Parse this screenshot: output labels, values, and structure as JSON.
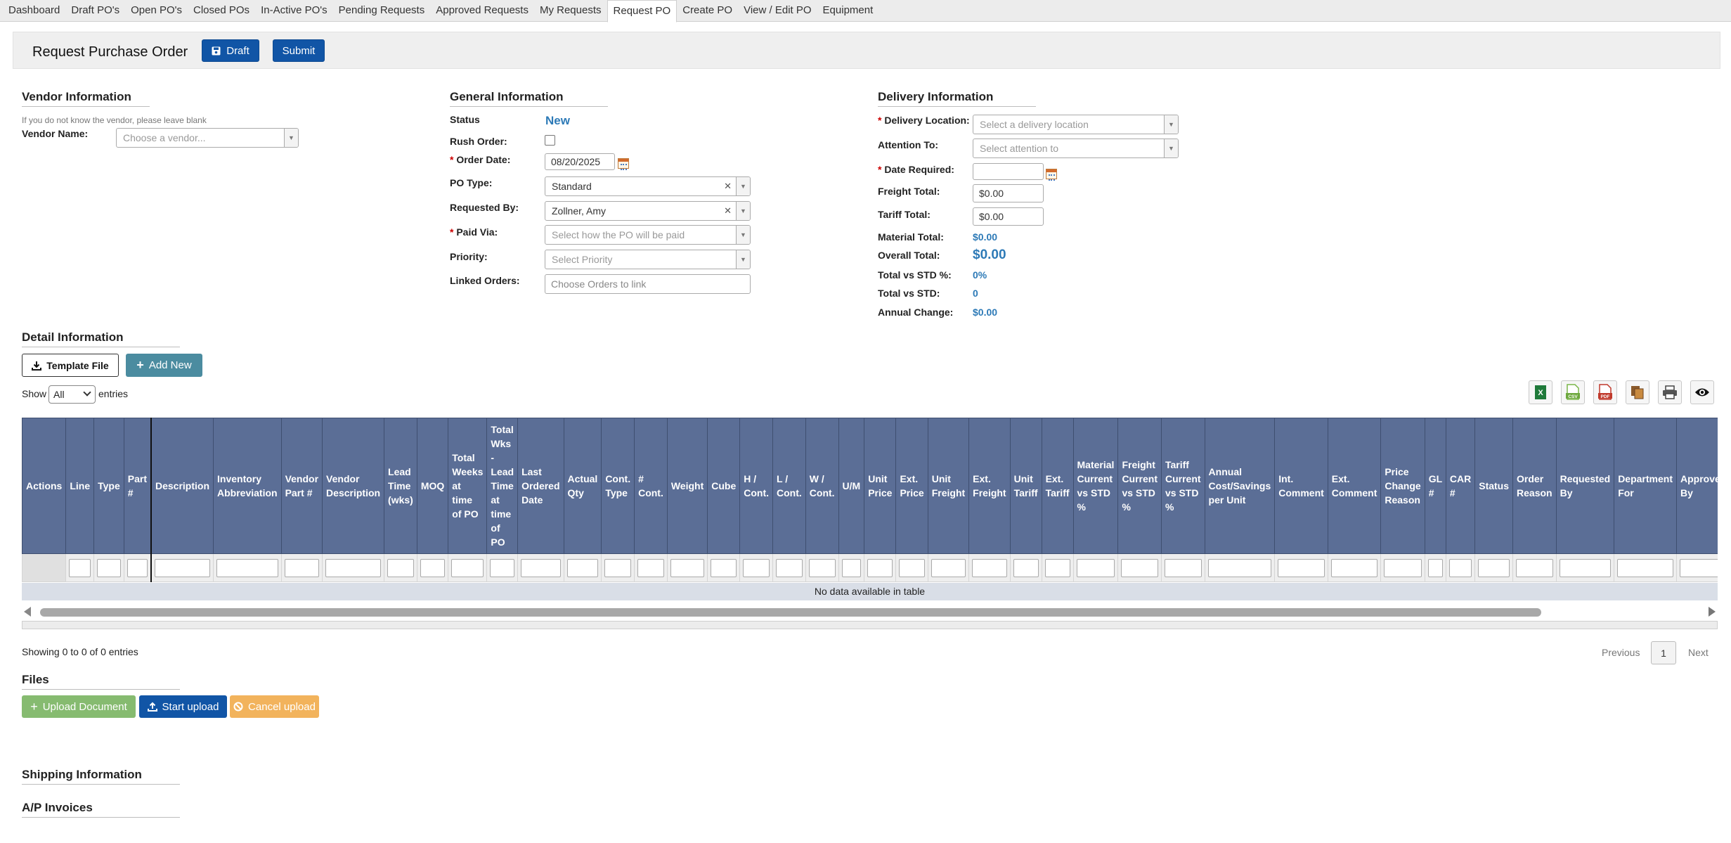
{
  "nav": {
    "tabs": [
      {
        "label": "Dashboard"
      },
      {
        "label": "Draft PO's"
      },
      {
        "label": "Open PO's"
      },
      {
        "label": "Closed POs"
      },
      {
        "label": "In-Active PO's"
      },
      {
        "label": "Pending Requests"
      },
      {
        "label": "Approved Requests"
      },
      {
        "label": "My Requests"
      },
      {
        "label": "Request PO",
        "active": true
      },
      {
        "label": "Create PO"
      },
      {
        "label": "View / Edit PO"
      },
      {
        "label": "Equipment"
      }
    ]
  },
  "header": {
    "title": "Request Purchase Order",
    "draft_label": "Draft",
    "submit_label": "Submit"
  },
  "vendor": {
    "title": "Vendor Information",
    "note": "If you do not know the vendor, please leave blank",
    "name_label": "Vendor Name:",
    "name_placeholder": "Choose a vendor..."
  },
  "general": {
    "title": "General Information",
    "status_label": "Status",
    "status_value": "New",
    "rush_label": "Rush Order:",
    "order_date_label": "Order Date:",
    "order_date_value": "08/20/2025",
    "po_type_label": "PO Type:",
    "po_type_value": "Standard",
    "requested_by_label": "Requested By:",
    "requested_by_value": "Zollner, Amy",
    "paid_via_label": "Paid Via:",
    "paid_via_placeholder": "Select how the PO will be paid",
    "priority_label": "Priority:",
    "priority_placeholder": "Select Priority",
    "linked_label": "Linked Orders:",
    "linked_placeholder": "Choose Orders to link"
  },
  "delivery": {
    "title": "Delivery Information",
    "location_label": "Delivery Location:",
    "location_placeholder": "Select a delivery location",
    "attention_label": "Attention To:",
    "attention_placeholder": "Select attention to",
    "date_required_label": "Date Required:",
    "freight_label": "Freight Total:",
    "freight_value": "$0.00",
    "tariff_label": "Tariff Total:",
    "tariff_value": "$0.00",
    "material_label": "Material Total:",
    "material_value": "$0.00",
    "overall_label": "Overall Total:",
    "overall_value": "$0.00",
    "vs_std_pct_label": "Total vs STD %:",
    "vs_std_pct_value": "0%",
    "vs_std_label": "Total vs STD:",
    "vs_std_value": "0",
    "annual_label": "Annual Change:",
    "annual_value": "$0.00"
  },
  "detail": {
    "title": "Detail Information",
    "template_label": "Template File",
    "add_new_label": "Add New",
    "show_label": "Show",
    "show_value": "All",
    "entries_label": "entries",
    "no_data": "No data available in table",
    "showing": "Showing 0 to 0 of 0 entries",
    "prev": "Previous",
    "page": "1",
    "next": "Next",
    "export_icons": [
      "excel-icon",
      "csv-icon",
      "pdf-icon",
      "copy-icon",
      "print-icon",
      "column-visibility-icon"
    ],
    "columns": [
      "Actions",
      "Line",
      "Type",
      "Part #",
      "Description",
      "Inventory Abbreviation",
      "Vendor Part #",
      "Vendor Description",
      "Lead Time (wks)",
      "MOQ",
      "Total Weeks at time of PO",
      "Total Wks - Lead Time at time of PO",
      "Last Ordered Date",
      "Actual Qty",
      "Cont. Type",
      "# Cont.",
      "Weight",
      "Cube",
      "H / Cont.",
      "L / Cont.",
      "W / Cont.",
      "U/M",
      "Unit Price",
      "Ext. Price",
      "Unit Freight",
      "Ext. Freight",
      "Unit Tariff",
      "Ext. Tariff",
      "Material Current vs STD %",
      "Freight Current vs STD %",
      "Tariff Current vs STD %",
      "Annual Cost/Savings per Unit",
      "Int. Comment",
      "Ext. Comment",
      "Price Change Reason",
      "GL #",
      "CAR #",
      "Status",
      "Order Reason",
      "Requested By",
      "Department For",
      "Approved By"
    ]
  },
  "files": {
    "title": "Files",
    "upload_label": "Upload Document",
    "start_label": "Start upload",
    "cancel_label": "Cancel upload"
  },
  "shipping": {
    "title": "Shipping Information"
  },
  "ap": {
    "title": "A/P Invoices"
  }
}
